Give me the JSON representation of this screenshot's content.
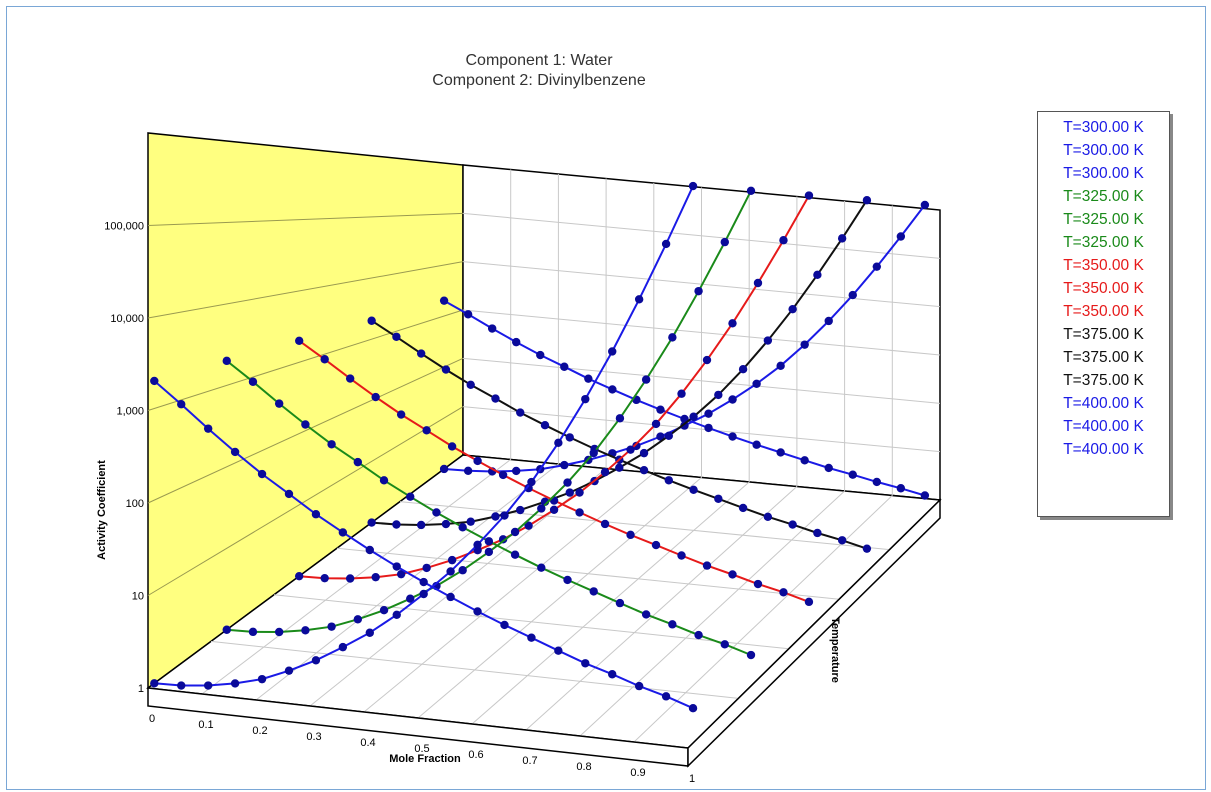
{
  "chart_data": {
    "type": "line",
    "title": [
      "Component 1: Water",
      "Component 2: Divinylbenzene"
    ],
    "xlabel": "Mole Fraction",
    "ylabel": "Activity Coefficient",
    "zlabel": "Temperature",
    "x_ticks": [
      "0",
      "0.1",
      "0.2",
      "0.3",
      "0.4",
      "0.5",
      "0.6",
      "0.7",
      "0.8",
      "0.9",
      "1"
    ],
    "y_ticks": [
      "1",
      "10",
      "100",
      "1,000",
      "10,000",
      "100,000"
    ],
    "y_scale": "log",
    "xlim": [
      0,
      1
    ],
    "ylim": [
      1,
      1000000
    ],
    "legend": {
      "placement": "right",
      "entries": [
        {
          "label": "T=300.00 K",
          "color": "#1a1ae6"
        },
        {
          "label": "T=300.00 K",
          "color": "#1a1ae6"
        },
        {
          "label": "T=300.00 K",
          "color": "#1a1ae6"
        },
        {
          "label": "T=325.00 K",
          "color": "#1a8a1a"
        },
        {
          "label": "T=325.00 K",
          "color": "#1a8a1a"
        },
        {
          "label": "T=325.00 K",
          "color": "#1a8a1a"
        },
        {
          "label": "T=350.00 K",
          "color": "#e61a1a"
        },
        {
          "label": "T=350.00 K",
          "color": "#e61a1a"
        },
        {
          "label": "T=350.00 K",
          "color": "#e61a1a"
        },
        {
          "label": "T=375.00 K",
          "color": "#111111"
        },
        {
          "label": "T=375.00 K",
          "color": "#111111"
        },
        {
          "label": "T=375.00 K",
          "color": "#111111"
        },
        {
          "label": "T=400.00 K",
          "color": "#1a1ae6"
        },
        {
          "label": "T=400.00 K",
          "color": "#1a1ae6"
        },
        {
          "label": "T=400.00 K",
          "color": "#1a1ae6"
        }
      ]
    },
    "series": [
      {
        "color": "#1a1ae6",
        "x": [
          0,
          0.05,
          0.1,
          0.15,
          0.2,
          0.25,
          0.3,
          0.35,
          0.4,
          0.45,
          0.5,
          0.55,
          0.6,
          0.65,
          0.7,
          0.75,
          0.8,
          0.85,
          0.9,
          0.95,
          1
        ],
        "gamma1": [
          2000,
          1200,
          700,
          420,
          260,
          170,
          110,
          75,
          52,
          37,
          27,
          20,
          15,
          11.5,
          9,
          7,
          5.5,
          4.5,
          3.6,
          3,
          2.4
        ],
        "gamma2": [
          1,
          1.02,
          1.1,
          1.25,
          1.5,
          2,
          2.8,
          4.2,
          6.5,
          11,
          20,
          38,
          80,
          180,
          450,
          1300,
          4200,
          15000,
          60000,
          260000,
          1200000
        ]
      },
      {
        "color": "#1a8a1a",
        "x": [
          0,
          0.05,
          0.1,
          0.15,
          0.2,
          0.25,
          0.3,
          0.35,
          0.4,
          0.45,
          0.5,
          0.55,
          0.6,
          0.65,
          0.7,
          0.75,
          0.8,
          0.85,
          0.9,
          0.95,
          1
        ],
        "gamma1": [
          2000,
          1200,
          700,
          420,
          260,
          170,
          110,
          75,
          52,
          37,
          27,
          20,
          15,
          11.5,
          9,
          7,
          5.5,
          4.5,
          3.6,
          3,
          2.4
        ],
        "gamma2": [
          1,
          1.02,
          1.1,
          1.25,
          1.5,
          2,
          2.8,
          4.2,
          6.5,
          11,
          20,
          38,
          80,
          180,
          450,
          1300,
          4200,
          15000,
          60000,
          260000,
          1200000
        ]
      },
      {
        "color": "#e61a1a",
        "x": [
          0,
          0.05,
          0.1,
          0.15,
          0.2,
          0.25,
          0.3,
          0.35,
          0.4,
          0.45,
          0.5,
          0.55,
          0.6,
          0.65,
          0.7,
          0.75,
          0.8,
          0.85,
          0.9,
          0.95,
          1
        ],
        "gamma1": [
          2000,
          1200,
          700,
          420,
          260,
          170,
          110,
          75,
          52,
          37,
          27,
          20,
          15,
          11.5,
          9,
          7,
          5.5,
          4.5,
          3.6,
          3,
          2.4
        ],
        "gamma2": [
          1,
          1.02,
          1.1,
          1.25,
          1.5,
          2,
          2.8,
          4.2,
          6.5,
          11,
          20,
          38,
          80,
          180,
          450,
          1300,
          4200,
          15000,
          60000,
          260000,
          1200000
        ]
      },
      {
        "color": "#111111",
        "x": [
          0,
          0.05,
          0.1,
          0.15,
          0.2,
          0.25,
          0.3,
          0.35,
          0.4,
          0.45,
          0.5,
          0.55,
          0.6,
          0.65,
          0.7,
          0.75,
          0.8,
          0.85,
          0.9,
          0.95,
          1
        ],
        "gamma1": [
          2000,
          1200,
          700,
          420,
          260,
          170,
          110,
          75,
          52,
          37,
          27,
          20,
          15,
          11.5,
          9,
          7,
          5.5,
          4.5,
          3.6,
          3,
          2.4
        ],
        "gamma2": [
          1,
          1.02,
          1.1,
          1.25,
          1.5,
          2,
          2.8,
          4.2,
          6.5,
          11,
          20,
          38,
          80,
          180,
          450,
          1300,
          4200,
          15000,
          60000,
          260000,
          1200000
        ]
      },
      {
        "color": "#1a1ae6",
        "x": [
          0,
          0.05,
          0.1,
          0.15,
          0.2,
          0.25,
          0.3,
          0.35,
          0.4,
          0.45,
          0.5,
          0.55,
          0.6,
          0.65,
          0.7,
          0.75,
          0.8,
          0.85,
          0.9,
          0.95,
          1
        ],
        "gamma1": [
          2000,
          1200,
          700,
          420,
          260,
          170,
          110,
          75,
          52,
          37,
          27,
          20,
          15,
          11.5,
          9,
          7,
          5.5,
          4.5,
          3.6,
          3,
          2.4
        ],
        "gamma2": [
          1,
          1.02,
          1.1,
          1.25,
          1.5,
          2,
          2.8,
          4.2,
          6.5,
          11,
          20,
          38,
          80,
          180,
          450,
          1300,
          4200,
          15000,
          60000,
          260000,
          1200000
        ]
      }
    ],
    "marker_color": "#0a0a9a",
    "back_wall_color": "#ffff80",
    "grid": true
  }
}
